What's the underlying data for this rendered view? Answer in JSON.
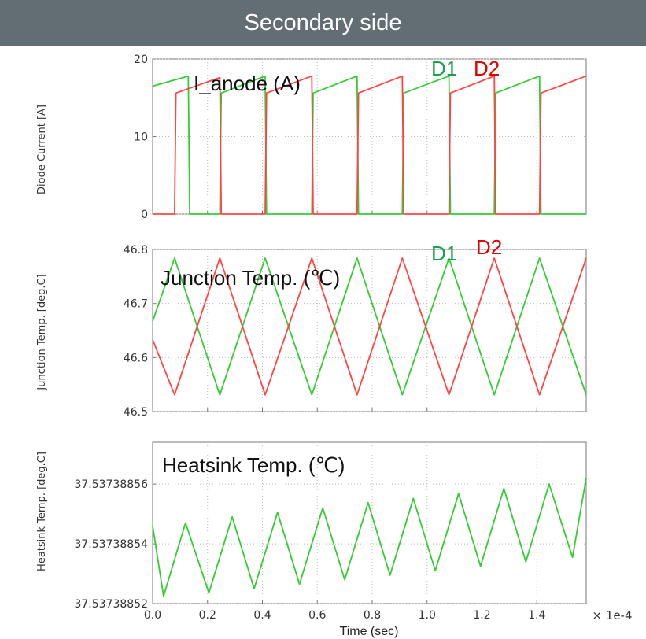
{
  "header": {
    "title": "Secondary side"
  },
  "colors": {
    "d1": "#33cc33",
    "d2": "#ff4444",
    "d1_label": "#1aa050",
    "d2_label": "#e00000",
    "header_bg": "#636d74"
  },
  "x_axis": {
    "label": "Time (sec)",
    "multiplier": "× 1e-4",
    "ticks": [
      "0.0",
      "0.2",
      "0.4",
      "0.6",
      "0.8",
      "1.0",
      "1.2",
      "1.4"
    ],
    "xlim": [
      0.0,
      1.58
    ]
  },
  "chart_data": [
    {
      "type": "line",
      "title": "I_anode (A)",
      "ylabel": "Diode Current [A]",
      "ylim": [
        0,
        20
      ],
      "yticks": [
        "0",
        "10",
        "20"
      ],
      "grid": true,
      "legend": [
        "D1",
        "D2"
      ],
      "series": [
        {
          "name": "D1",
          "x": [
            0.0,
            0.13,
            0.135,
            0.245,
            0.25,
            0.41,
            0.415,
            0.58,
            0.585,
            0.745,
            0.75,
            0.91,
            0.915,
            1.08,
            1.085,
            1.245,
            1.25,
            1.41,
            1.415,
            1.58
          ],
          "y": [
            16.5,
            17.8,
            0,
            0,
            15.6,
            17.8,
            0,
            0,
            15.6,
            17.8,
            0,
            0,
            15.6,
            17.8,
            0,
            0,
            15.6,
            17.8,
            0,
            0
          ]
        },
        {
          "name": "D2",
          "x": [
            0.0,
            0.08,
            0.085,
            0.245,
            0.25,
            0.41,
            0.415,
            0.58,
            0.585,
            0.745,
            0.75,
            0.91,
            0.915,
            1.08,
            1.085,
            1.245,
            1.25,
            1.41,
            1.415,
            1.58
          ],
          "y": [
            0,
            0,
            15.6,
            17.6,
            0,
            0,
            15.6,
            17.8,
            0,
            0,
            15.6,
            17.8,
            0,
            0,
            15.6,
            17.8,
            0,
            0,
            15.6,
            17.8
          ]
        }
      ]
    },
    {
      "type": "line",
      "title": "Junction Temp. (℃)",
      "ylabel": "Junction Temp. [deg.C]",
      "ylim": [
        46.5,
        46.8
      ],
      "yticks": [
        "46.5",
        "46.6",
        "46.7",
        "46.8"
      ],
      "grid": true,
      "legend": [
        "D1",
        "D2"
      ],
      "series": [
        {
          "name": "D1",
          "x": [
            0.0,
            0.08,
            0.245,
            0.41,
            0.58,
            0.745,
            0.91,
            1.08,
            1.245,
            1.41,
            1.58
          ],
          "y": [
            46.667,
            46.784,
            46.531,
            46.784,
            46.531,
            46.784,
            46.531,
            46.784,
            46.531,
            46.784,
            46.531
          ]
        },
        {
          "name": "D2",
          "x": [
            0.0,
            0.08,
            0.245,
            0.41,
            0.58,
            0.745,
            0.91,
            1.08,
            1.245,
            1.41,
            1.58
          ],
          "y": [
            46.633,
            46.531,
            46.784,
            46.531,
            46.784,
            46.531,
            46.784,
            46.531,
            46.784,
            46.531,
            46.784
          ]
        }
      ]
    },
    {
      "type": "line",
      "title": "Heatsink Temp. (℃)",
      "ylabel": "Heatsink Temp. [deg.C]",
      "ylim": [
        37.53738852,
        37.537388574
      ],
      "yticks": [
        "37.53738852",
        "37.53738854",
        "37.53738856"
      ],
      "grid": true,
      "series": [
        {
          "name": "",
          "x": [
            0.0,
            0.04,
            0.12,
            0.205,
            0.29,
            0.37,
            0.455,
            0.535,
            0.62,
            0.7,
            0.785,
            0.865,
            0.95,
            1.03,
            1.115,
            1.195,
            1.28,
            1.36,
            1.445,
            1.53,
            1.58
          ],
          "y": [
            37.537388546,
            37.5373885225,
            37.537388547,
            37.5373885236,
            37.537388549,
            37.537388525,
            37.5373885505,
            37.5373885265,
            37.537388552,
            37.537388528,
            37.5373885538,
            37.5373885295,
            37.5373885552,
            37.537388531,
            37.5373885568,
            37.5373885325,
            37.5373885585,
            37.537388534,
            37.53738856,
            37.5373885355,
            37.537388562
          ]
        }
      ]
    }
  ]
}
